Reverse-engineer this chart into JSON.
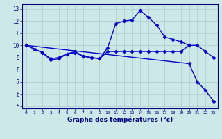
{
  "xlabel": "Graphe des températures (°c)",
  "background_color": "#cce8e8",
  "line_color": "#0000cc",
  "grid_color": "#aacccc",
  "xlim": [
    -0.5,
    23.5
  ],
  "ylim": [
    4.8,
    13.4
  ],
  "yticks": [
    5,
    6,
    7,
    8,
    9,
    10,
    11,
    12,
    13
  ],
  "xticks": [
    0,
    1,
    2,
    3,
    4,
    5,
    6,
    7,
    8,
    9,
    10,
    11,
    12,
    13,
    14,
    15,
    16,
    17,
    18,
    19,
    20,
    21,
    22,
    23
  ],
  "series": [
    {
      "x": [
        0,
        1,
        2,
        3,
        4,
        5,
        6,
        7,
        8,
        9,
        10,
        11,
        12,
        13,
        14,
        15,
        16,
        17,
        18,
        19,
        20
      ],
      "y": [
        10.0,
        9.7,
        9.4,
        8.8,
        8.9,
        9.3,
        9.5,
        9.1,
        9.0,
        8.9,
        9.8,
        11.8,
        12.0,
        12.1,
        12.9,
        12.3,
        11.7,
        10.7,
        10.5,
        10.3,
        10.0
      ]
    },
    {
      "x": [
        0,
        1,
        2,
        3,
        4,
        5,
        6,
        7,
        8,
        9,
        10,
        11,
        12,
        13,
        14,
        15,
        16,
        17,
        18,
        19,
        20,
        21,
        22,
        23
      ],
      "y": [
        10.0,
        9.7,
        9.4,
        8.9,
        9.0,
        9.3,
        9.4,
        9.1,
        9.0,
        8.9,
        9.5,
        9.5,
        9.5,
        9.5,
        9.5,
        9.5,
        9.5,
        9.5,
        9.5,
        9.5,
        10.0,
        10.0,
        9.5,
        9.0
      ]
    },
    {
      "x": [
        0,
        20,
        21,
        22,
        23
      ],
      "y": [
        10.0,
        8.5,
        7.0,
        6.3,
        5.4
      ]
    }
  ]
}
